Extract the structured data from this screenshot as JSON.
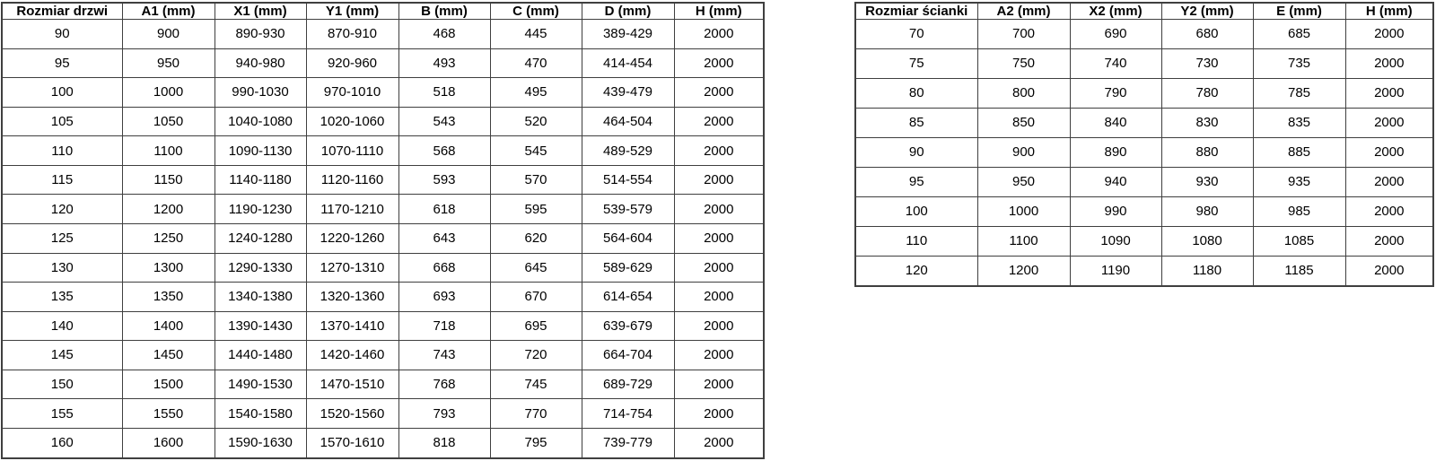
{
  "tables": {
    "doors": {
      "name": "door-sizes",
      "headers": [
        "Rozmiar drzwi",
        "A1 (mm)",
        "X1 (mm)",
        "Y1 (mm)",
        "B (mm)",
        "C (mm)",
        "D (mm)",
        "H (mm)"
      ],
      "rows": [
        [
          "90",
          "900",
          "890-930",
          "870-910",
          "468",
          "445",
          "389-429",
          "2000"
        ],
        [
          "95",
          "950",
          "940-980",
          "920-960",
          "493",
          "470",
          "414-454",
          "2000"
        ],
        [
          "100",
          "1000",
          "990-1030",
          "970-1010",
          "518",
          "495",
          "439-479",
          "2000"
        ],
        [
          "105",
          "1050",
          "1040-1080",
          "1020-1060",
          "543",
          "520",
          "464-504",
          "2000"
        ],
        [
          "110",
          "1100",
          "1090-1130",
          "1070-1110",
          "568",
          "545",
          "489-529",
          "2000"
        ],
        [
          "115",
          "1150",
          "1140-1180",
          "1120-1160",
          "593",
          "570",
          "514-554",
          "2000"
        ],
        [
          "120",
          "1200",
          "1190-1230",
          "1170-1210",
          "618",
          "595",
          "539-579",
          "2000"
        ],
        [
          "125",
          "1250",
          "1240-1280",
          "1220-1260",
          "643",
          "620",
          "564-604",
          "2000"
        ],
        [
          "130",
          "1300",
          "1290-1330",
          "1270-1310",
          "668",
          "645",
          "589-629",
          "2000"
        ],
        [
          "135",
          "1350",
          "1340-1380",
          "1320-1360",
          "693",
          "670",
          "614-654",
          "2000"
        ],
        [
          "140",
          "1400",
          "1390-1430",
          "1370-1410",
          "718",
          "695",
          "639-679",
          "2000"
        ],
        [
          "145",
          "1450",
          "1440-1480",
          "1420-1460",
          "743",
          "720",
          "664-704",
          "2000"
        ],
        [
          "150",
          "1500",
          "1490-1530",
          "1470-1510",
          "768",
          "745",
          "689-729",
          "2000"
        ],
        [
          "155",
          "1550",
          "1540-1580",
          "1520-1560",
          "793",
          "770",
          "714-754",
          "2000"
        ],
        [
          "160",
          "1600",
          "1590-1630",
          "1570-1610",
          "818",
          "795",
          "739-779",
          "2000"
        ]
      ]
    },
    "walls": {
      "name": "wall-sizes",
      "headers": [
        "Rozmiar ścianki",
        "A2 (mm)",
        "X2 (mm)",
        "Y2 (mm)",
        "E (mm)",
        "H (mm)"
      ],
      "rows": [
        [
          "70",
          "700",
          "690",
          "680",
          "685",
          "2000"
        ],
        [
          "75",
          "750",
          "740",
          "730",
          "735",
          "2000"
        ],
        [
          "80",
          "800",
          "790",
          "780",
          "785",
          "2000"
        ],
        [
          "85",
          "850",
          "840",
          "830",
          "835",
          "2000"
        ],
        [
          "90",
          "900",
          "890",
          "880",
          "885",
          "2000"
        ],
        [
          "95",
          "950",
          "940",
          "930",
          "935",
          "2000"
        ],
        [
          "100",
          "1000",
          "990",
          "980",
          "985",
          "2000"
        ],
        [
          "110",
          "1100",
          "1090",
          "1080",
          "1085",
          "2000"
        ],
        [
          "120",
          "1200",
          "1190",
          "1180",
          "1185",
          "2000"
        ]
      ]
    }
  },
  "style": {
    "border_color": "#3f3f3f",
    "text_color": "#000000",
    "background_color": "#ffffff"
  }
}
